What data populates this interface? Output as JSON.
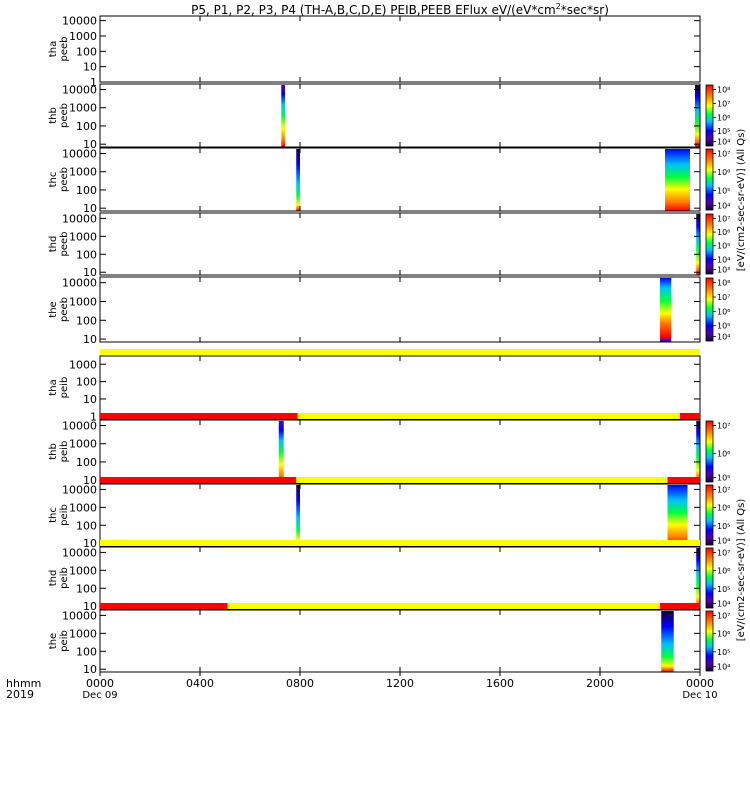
{
  "chart_data": {
    "type": "heatmap",
    "title": "P5, P1, P2, P3, P4 (TH-A,B,C,D,E) PEIB,PEEB EFlux eV/(eV*cm",
    "title_sup": "2",
    "title_tail": "*sec*sr)",
    "x_axis": {
      "row_labels": [
        "hhmm",
        "2019"
      ],
      "ticks": [
        "0000",
        "0400",
        "0800",
        "1200",
        "1600",
        "2000",
        "0000"
      ],
      "tick_hours": [
        0,
        4,
        8,
        12,
        16,
        20,
        24
      ],
      "dates": [
        "Dec 09",
        "Dec 10"
      ],
      "range_hours": [
        0,
        24
      ]
    },
    "colorbar_labels": {
      "electron": "[eV/(cm2-sec-sr-eV)] (All Qs)",
      "ion": "[eV/(cm2-sec-sr-eV)] (All Qs)"
    },
    "panels": [
      {
        "id": "tha-peeb",
        "label": [
          "tha",
          "peeb"
        ],
        "yticks": [
          "1",
          "10",
          "100",
          "1000",
          "10000"
        ],
        "yrange": [
          1,
          20000
        ],
        "colorbar": [],
        "bursts": [],
        "flag_bar": []
      },
      {
        "id": "thb-peeb",
        "label": [
          "thb",
          "peeb"
        ],
        "yticks": [
          "10",
          "100",
          "1000",
          "10000"
        ],
        "yrange": [
          7,
          20000
        ],
        "colorbar": [
          "10⁴",
          "10⁵",
          "10⁶",
          "10⁷",
          "10⁸"
        ],
        "colorbar_range": [
          4,
          8
        ],
        "bursts": [
          {
            "start": 7.25,
            "end": 7.4,
            "profile": "wide"
          },
          {
            "start": 23.8,
            "end": 24.0,
            "profile": "edge"
          }
        ],
        "flag_bar": []
      },
      {
        "id": "thc-peeb",
        "label": [
          "thc",
          "peeb"
        ],
        "yticks": [
          "10",
          "100",
          "1000",
          "10000"
        ],
        "yrange": [
          7,
          20000
        ],
        "colorbar": [
          "10⁴",
          "10⁵",
          "10⁶",
          "10⁷"
        ],
        "colorbar_range": [
          4,
          7.5
        ],
        "bursts": [
          {
            "start": 7.85,
            "end": 8.0,
            "profile": "mid"
          },
          {
            "start": 22.6,
            "end": 23.6,
            "profile": "broad"
          }
        ],
        "flag_bar": []
      },
      {
        "id": "thd-peeb",
        "label": [
          "thd",
          "peeb"
        ],
        "yticks": [
          "10",
          "100",
          "1000",
          "10000"
        ],
        "yrange": [
          7,
          20000
        ],
        "colorbar": [
          "10³",
          "10⁴",
          "10⁵",
          "10⁶",
          "10⁷"
        ],
        "colorbar_range": [
          3,
          7.5
        ],
        "bursts": [
          {
            "start": 23.85,
            "end": 24.0,
            "profile": "edge"
          }
        ],
        "flag_bar": []
      },
      {
        "id": "the-peeb",
        "label": [
          "the",
          "peeb"
        ],
        "yticks": [
          "10",
          "100",
          "1000",
          "10000"
        ],
        "yrange": [
          7,
          20000
        ],
        "colorbar": [
          "10⁴",
          "10⁵",
          "10⁶",
          "10⁷",
          "10⁸"
        ],
        "colorbar_range": [
          4,
          8
        ],
        "bursts": [
          {
            "start": 22.4,
            "end": 22.85,
            "profile": "low"
          }
        ],
        "flag_bar": []
      },
      {
        "id": "tha-peib",
        "label": [
          "tha",
          "peib"
        ],
        "yticks": [
          "1",
          "10",
          "100",
          "1000"
        ],
        "yrange": [
          0.7,
          3000
        ],
        "colorbar": [],
        "bursts": [],
        "flag_bar": [
          {
            "start": 0,
            "end": 24,
            "color": "#ffff00"
          }
        ]
      },
      {
        "id": "thb-peib",
        "label": [
          "thb",
          "peib"
        ],
        "yticks": [
          "10",
          "100",
          "1000",
          "10000"
        ],
        "yrange": [
          7,
          20000
        ],
        "colorbar": [
          "10⁵",
          "10⁶",
          "10⁷"
        ],
        "colorbar_range": [
          4.5,
          7.3
        ],
        "bursts": [
          {
            "start": 7.15,
            "end": 7.35,
            "profile": "wide"
          },
          {
            "start": 23.85,
            "end": 24.0,
            "profile": "edge"
          }
        ],
        "flag_bar": [
          {
            "start": 0,
            "end": 7.9,
            "color": "#ff0000"
          },
          {
            "start": 7.9,
            "end": 23.2,
            "color": "#ffff00"
          },
          {
            "start": 23.2,
            "end": 24,
            "color": "#ff0000"
          }
        ]
      },
      {
        "id": "thc-peib",
        "label": [
          "thc",
          "peib"
        ],
        "yticks": [
          "10",
          "100",
          "1000",
          "10000"
        ],
        "yrange": [
          7,
          20000
        ],
        "colorbar": [
          "10⁴",
          "10⁵",
          "10⁶",
          "10⁷"
        ],
        "colorbar_range": [
          4,
          7.3
        ],
        "bursts": [
          {
            "start": 7.85,
            "end": 8.0,
            "profile": "mid"
          },
          {
            "start": 22.7,
            "end": 23.5,
            "profile": "broad"
          }
        ],
        "flag_bar": [
          {
            "start": 0,
            "end": 7.85,
            "color": "#ff0000"
          },
          {
            "start": 7.85,
            "end": 22.7,
            "color": "#ffff00"
          },
          {
            "start": 22.7,
            "end": 24,
            "color": "#ff0000"
          }
        ]
      },
      {
        "id": "thd-peib",
        "label": [
          "thd",
          "peib"
        ],
        "yticks": [
          "10",
          "100",
          "1000",
          "10000"
        ],
        "yrange": [
          7,
          20000
        ],
        "colorbar": [
          "10⁴",
          "10⁵",
          "10⁶",
          "10⁷"
        ],
        "colorbar_range": [
          4,
          7.3
        ],
        "bursts": [
          {
            "start": 23.85,
            "end": 24.0,
            "profile": "edge"
          }
        ],
        "flag_bar": [
          {
            "start": 0,
            "end": 24,
            "color": "#ffff00"
          }
        ]
      },
      {
        "id": "the-peib",
        "label": [
          "the",
          "peib"
        ],
        "yticks": [
          "10",
          "100",
          "1000",
          "10000"
        ],
        "yrange": [
          7,
          20000
        ],
        "colorbar": [
          "10⁴",
          "10⁵",
          "10⁶",
          "10⁷"
        ],
        "colorbar_range": [
          3.5,
          7.5
        ],
        "bursts": [
          {
            "start": 22.45,
            "end": 22.95,
            "profile": "mid"
          }
        ],
        "flag_bar": [
          {
            "start": 0,
            "end": 5.1,
            "color": "#ff0000"
          },
          {
            "start": 5.1,
            "end": 22.4,
            "color": "#ffff00"
          },
          {
            "start": 22.4,
            "end": 24,
            "color": "#ff0000"
          }
        ]
      }
    ]
  }
}
